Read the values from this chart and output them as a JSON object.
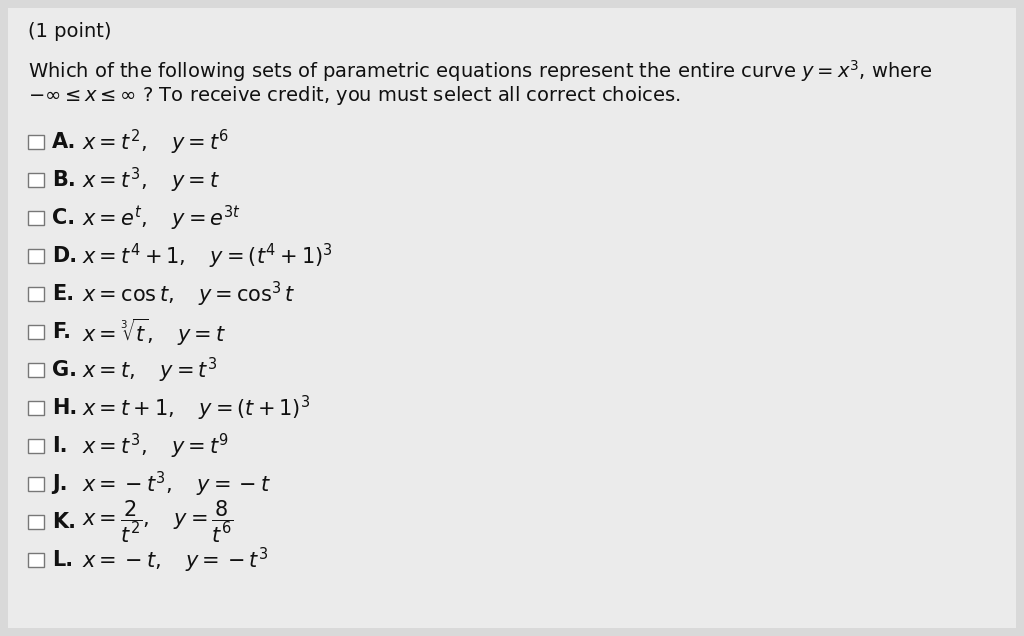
{
  "background_color": "#d9d9d9",
  "content_bg": "#f0f0f0",
  "title_text": "(1 point)",
  "question_line1": "Which of the following sets of parametric equations represent the entire curve $y = x^3$, where",
  "question_line2": "$-\\infty \\leq x \\leq \\infty$ ? To receive credit, you must select all correct choices.",
  "choices": [
    {
      "label": "A.",
      "eq": "$x = t^2, \\quad y = t^6$"
    },
    {
      "label": "B.",
      "eq": "$x = t^3, \\quad y = t$"
    },
    {
      "label": "C.",
      "eq": "$x = e^t, \\quad y = e^{3t}$"
    },
    {
      "label": "D.",
      "eq": "$x = t^4 + 1, \\quad y = (t^4 + 1)^3$"
    },
    {
      "label": "E.",
      "eq": "$x = \\cos t, \\quad y = \\cos^3 t$"
    },
    {
      "label": "F.",
      "eq": "$x = \\sqrt[3]{t}, \\quad y = t$"
    },
    {
      "label": "G.",
      "eq": "$x = t, \\quad y = t^3$"
    },
    {
      "label": "H.",
      "eq": "$x = t + 1, \\quad y = (t + 1)^3$"
    },
    {
      "label": "I.",
      "eq": "$x = t^3, \\quad y = t^9$"
    },
    {
      "label": "J.",
      "eq": "$x = -t^3, \\quad y = -t$"
    },
    {
      "label": "K.",
      "eq": "$x = \\dfrac{2}{t^2}, \\quad y = \\dfrac{8}{t^6}$"
    },
    {
      "label": "L.",
      "eq": "$x = -t, \\quad y = -t^3$"
    }
  ],
  "checkbox_color": "white",
  "checkbox_edge_color": "#777777",
  "text_color": "#111111",
  "font_size_title": 14,
  "font_size_question": 14,
  "font_size_choices": 15
}
